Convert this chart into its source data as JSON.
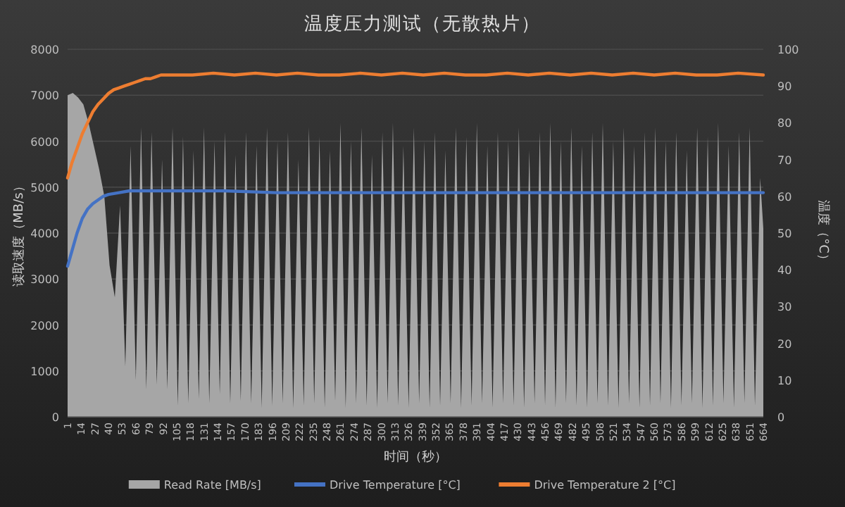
{
  "chart_data": {
    "type": "area",
    "title": "温度压力测试（无散热片）",
    "xlabel": "时间（秒）",
    "ylabel": "读取速度（MB/s）",
    "y2label": "温度（°C）",
    "xlim": [
      1,
      664
    ],
    "xticks": [
      1,
      14,
      27,
      40,
      53,
      66,
      79,
      92,
      105,
      118,
      131,
      144,
      157,
      170,
      183,
      196,
      209,
      222,
      235,
      248,
      261,
      274,
      287,
      300,
      313,
      326,
      339,
      352,
      365,
      378,
      391,
      404,
      417,
      430,
      443,
      456,
      469,
      482,
      495,
      508,
      521,
      534,
      547,
      560,
      573,
      586,
      599,
      612,
      625,
      638,
      651,
      664
    ],
    "ylim": [
      0,
      8000
    ],
    "yticks": [
      0,
      1000,
      2000,
      3000,
      4000,
      5000,
      6000,
      7000,
      8000
    ],
    "y2lim": [
      0,
      100
    ],
    "y2ticks": [
      0,
      10,
      20,
      30,
      40,
      50,
      60,
      70,
      80,
      90,
      100
    ],
    "grid": "y",
    "legend": "bottom",
    "marker": "none",
    "line_style": "solid",
    "series": [
      {
        "name": "Read Rate [MB/s]",
        "color": "#a6a6a6",
        "x": [
          1,
          6,
          11,
          16,
          21,
          26,
          31,
          36,
          41,
          46,
          51,
          56,
          61,
          66,
          71,
          76,
          81,
          86,
          91,
          96,
          101,
          106,
          111,
          116,
          121,
          126,
          131,
          136,
          141,
          146,
          151,
          156,
          161,
          166,
          171,
          176,
          181,
          186,
          191,
          196,
          201,
          206,
          211,
          216,
          221,
          226,
          231,
          236,
          241,
          246,
          251,
          256,
          261,
          266,
          271,
          276,
          281,
          286,
          291,
          296,
          301,
          306,
          311,
          316,
          321,
          326,
          331,
          336,
          341,
          346,
          351,
          356,
          361,
          366,
          371,
          376,
          381,
          386,
          391,
          396,
          401,
          406,
          411,
          416,
          421,
          426,
          431,
          436,
          441,
          446,
          451,
          456,
          461,
          466,
          471,
          476,
          481,
          486,
          491,
          496,
          501,
          506,
          511,
          516,
          521,
          526,
          531,
          536,
          541,
          546,
          551,
          556,
          561,
          566,
          571,
          576,
          581,
          586,
          591,
          596,
          601,
          606,
          611,
          616,
          621,
          626,
          631,
          636,
          641,
          646,
          651,
          656,
          661,
          664
        ],
        "values": [
          7000,
          7050,
          6950,
          6800,
          6400,
          5900,
          5400,
          4800,
          3300,
          2600,
          4600,
          1100,
          5900,
          800,
          6300,
          600,
          6200,
          700,
          5600,
          600,
          6300,
          250,
          6100,
          300,
          5800,
          400,
          6300,
          300,
          6000,
          500,
          6200,
          300,
          5700,
          350,
          6200,
          300,
          5900,
          200,
          6300,
          250,
          6000,
          300,
          6200,
          200,
          5600,
          250,
          6300,
          300,
          6100,
          200,
          5800,
          350,
          6400,
          200,
          6000,
          300,
          6300,
          250,
          5700,
          200,
          6200,
          300,
          6400,
          250,
          5900,
          200,
          6300,
          300,
          6000,
          200,
          6200,
          250,
          5800,
          300,
          6300,
          200,
          6100,
          250,
          6400,
          300,
          5900,
          200,
          6200,
          300,
          6000,
          250,
          6300,
          200,
          5800,
          300,
          6200,
          250,
          6400,
          200,
          6000,
          300,
          6300,
          250,
          5900,
          200,
          6200,
          300,
          6400,
          250,
          6000,
          200,
          6300,
          300,
          5900,
          200,
          6200,
          250,
          6300,
          300,
          6000,
          200,
          6200,
          250,
          5800,
          300,
          6300,
          200,
          6100,
          250,
          6400,
          300,
          5900,
          200,
          6200,
          300,
          6300,
          250,
          5200,
          4100
        ]
      },
      {
        "name": "Drive Temperature [°C]",
        "type": "line",
        "axis": "y2",
        "color": "#4472c4",
        "x": [
          1,
          5,
          10,
          15,
          20,
          25,
          30,
          35,
          40,
          50,
          60,
          80,
          100,
          150,
          200,
          300,
          400,
          500,
          600,
          664
        ],
        "values": [
          41,
          45,
          50,
          54,
          56.5,
          58,
          59,
          60,
          60.5,
          61,
          61.5,
          61.5,
          61.5,
          61.5,
          61,
          61,
          61,
          61,
          61,
          61
        ]
      },
      {
        "name": "Drive Temperature 2 [°C]",
        "type": "line",
        "axis": "y2",
        "color": "#ed7d31",
        "x": [
          1,
          5,
          10,
          15,
          20,
          25,
          30,
          35,
          40,
          45,
          50,
          55,
          60,
          65,
          70,
          75,
          80,
          85,
          90,
          100,
          120,
          140,
          160,
          180,
          200,
          220,
          240,
          260,
          280,
          300,
          320,
          340,
          360,
          380,
          400,
          420,
          440,
          460,
          480,
          500,
          520,
          540,
          560,
          580,
          600,
          620,
          640,
          664
        ],
        "values": [
          65,
          69,
          73,
          77,
          80,
          83,
          85,
          86.5,
          88,
          89,
          89.5,
          90,
          90.5,
          91,
          91.5,
          92,
          92,
          92.5,
          93,
          93,
          93,
          93.5,
          93,
          93.5,
          93,
          93.5,
          93,
          93,
          93.5,
          93,
          93.5,
          93,
          93.5,
          93,
          93,
          93.5,
          93,
          93.5,
          93,
          93.5,
          93,
          93.5,
          93,
          93.5,
          93,
          93,
          93.5,
          93
        ]
      }
    ]
  }
}
